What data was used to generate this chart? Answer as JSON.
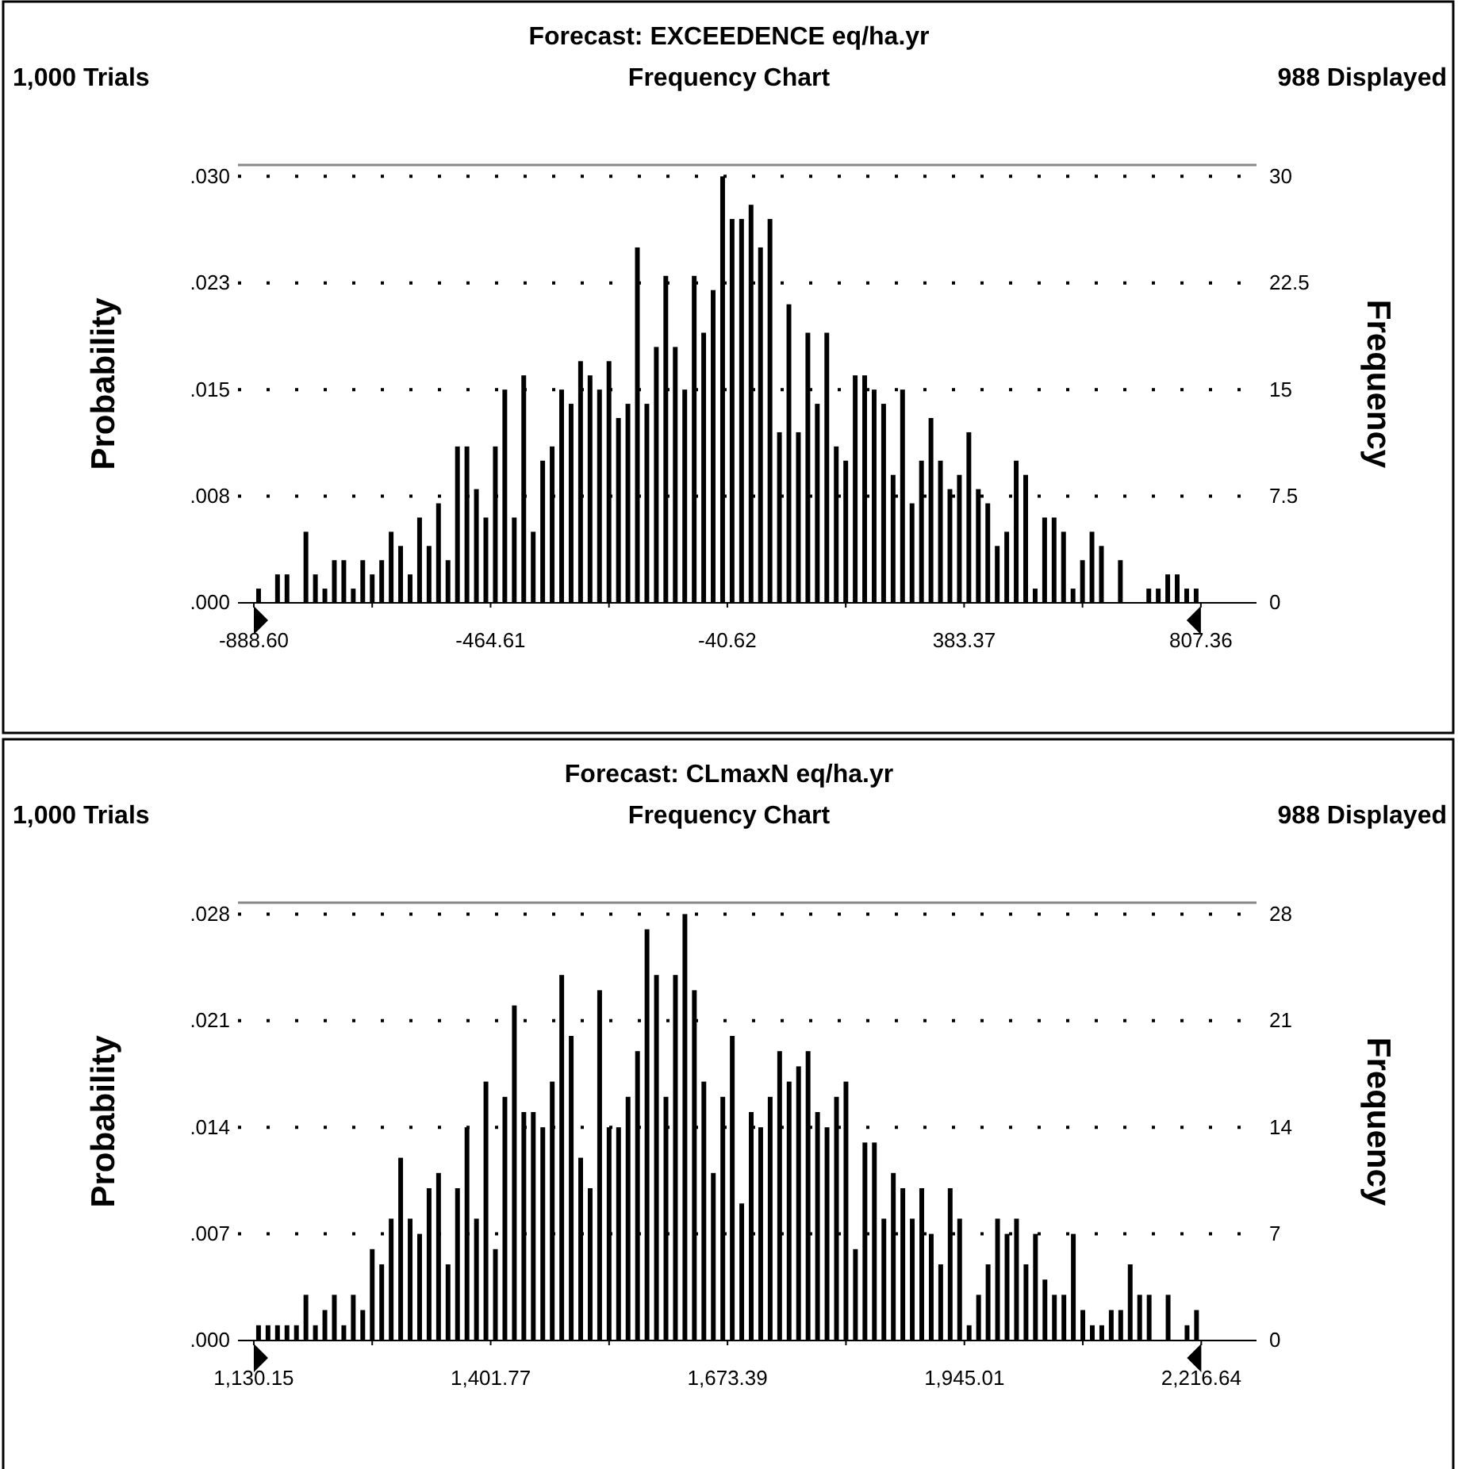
{
  "chart_data": [
    {
      "type": "histogram",
      "title": "Forecast: EXCEEDENCE eq/ha.yr",
      "subtitle": "Frequency Chart",
      "annotations": [
        "1,000 Trials",
        "988 Displayed"
      ],
      "ylabel": "Probability",
      "y2label": "Frequency",
      "bins": [
        -888.6,
        -871.64,
        -854.68,
        -837.72,
        -820.76,
        -803.8,
        -786.84,
        -769.88,
        -752.92,
        -735.96,
        -719,
        -702.04,
        -685.08,
        -668.12,
        -651.17,
        -634.21,
        -617.25,
        -600.29,
        -583.33,
        -566.37,
        -549.41,
        -532.45,
        -515.49,
        -498.53,
        -481.57,
        -464.61,
        -447.65,
        -430.69,
        -413.73,
        -396.77,
        -379.81,
        -362.85,
        -345.89,
        -328.93,
        -311.97,
        -295.01,
        -278.05,
        -261.09,
        -244.13,
        -227.18,
        -210.22,
        -193.26,
        -176.3,
        -159.34,
        -142.38,
        -125.42,
        -108.46,
        -91.5,
        -74.54,
        -57.58,
        -40.62,
        -23.66,
        -6.7,
        10.26,
        27.22,
        44.18,
        61.14,
        78.1,
        95.06,
        112.02,
        128.98,
        145.94,
        162.9,
        179.86,
        196.81,
        213.77,
        230.73,
        247.69,
        264.65,
        281.61,
        298.57,
        315.53,
        332.49,
        349.45,
        366.41,
        383.37,
        400.33,
        417.29,
        434.25,
        451.21,
        468.17,
        485.13,
        502.09,
        519.05,
        536.01,
        552.97,
        569.93,
        586.89,
        603.85,
        620.8,
        637.76,
        654.72,
        671.68,
        688.64,
        705.6,
        722.56,
        739.52,
        756.48,
        773.44,
        790.4,
        807.36
      ],
      "series": [
        {
          "color": "#000000",
          "axis": "y2",
          "values": [
            1,
            0,
            2,
            2,
            0,
            5,
            2,
            1,
            3,
            3,
            1,
            3,
            2,
            3,
            5,
            4,
            2,
            6,
            4,
            7,
            3,
            11,
            11,
            8,
            6,
            11,
            15,
            6,
            16,
            5,
            10,
            11,
            15,
            14,
            17,
            16,
            15,
            17,
            13,
            14,
            25,
            14,
            18,
            23,
            18,
            15,
            23,
            19,
            22,
            30,
            27,
            27,
            28,
            25,
            27,
            12,
            21,
            12,
            19,
            14,
            19,
            11,
            10,
            16,
            16,
            15,
            14,
            9,
            15,
            7,
            10,
            13,
            10,
            8,
            9,
            12,
            8,
            7,
            4,
            5,
            10,
            9,
            1,
            6,
            6,
            5,
            1,
            3,
            5,
            4,
            0,
            3,
            0,
            0,
            1,
            1,
            2,
            2,
            1,
            1
          ]
        }
      ],
      "xlim": [
        -917,
        907
      ],
      "xticks": [
        {
          "value": -888.6,
          "label": "-888.60"
        },
        {
          "value": -676.605,
          "label": null
        },
        {
          "value": -464.61,
          "label": "-464.61"
        },
        {
          "value": -252.615,
          "label": null
        },
        {
          "value": -40.62,
          "label": "-40.62"
        },
        {
          "value": 171.375,
          "label": null
        },
        {
          "value": 383.37,
          "label": "383.37"
        },
        {
          "value": 595.365,
          "label": null
        },
        {
          "value": 807.36,
          "label": "807.36"
        }
      ],
      "ylim": [
        0,
        0.0308
      ],
      "yticks": [
        {
          "value": 0,
          "label": ".000"
        },
        {
          "value": 0.0075,
          "label": ".008"
        },
        {
          "value": 0.015,
          "label": ".015"
        },
        {
          "value": 0.0225,
          "label": ".023"
        },
        {
          "value": 0.03,
          "label": ".030"
        }
      ],
      "y2lim": [
        0,
        30.8
      ],
      "y2ticks": [
        0,
        7.5,
        15,
        22.5,
        30
      ],
      "grid": "y"
    },
    {
      "type": "histogram",
      "title": "Forecast: CLmaxN eq/ha.yr",
      "subtitle": "Frequency Chart",
      "annotations": [
        "1,000 Trials",
        "988 Displayed"
      ],
      "ylabel": "Probability",
      "y2label": "Frequency",
      "bins": [
        1130.15,
        1141.01,
        1151.88,
        1162.74,
        1173.61,
        1184.47,
        1195.34,
        1206.2,
        1217.07,
        1227.93,
        1238.8,
        1249.66,
        1260.53,
        1271.39,
        1282.26,
        1293.12,
        1303.99,
        1314.85,
        1325.72,
        1336.58,
        1347.45,
        1358.31,
        1369.18,
        1380.04,
        1390.91,
        1401.77,
        1412.64,
        1423.5,
        1434.37,
        1445.23,
        1456.1,
        1466.96,
        1477.83,
        1488.69,
        1499.56,
        1510.42,
        1521.29,
        1532.15,
        1543.02,
        1553.88,
        1564.75,
        1575.61,
        1586.48,
        1597.34,
        1608.21,
        1619.07,
        1629.94,
        1640.8,
        1651.67,
        1662.53,
        1673.39,
        1684.26,
        1695.12,
        1705.99,
        1716.85,
        1727.72,
        1738.58,
        1749.45,
        1760.31,
        1771.18,
        1782.04,
        1792.91,
        1803.77,
        1814.64,
        1825.5,
        1836.37,
        1847.23,
        1858.1,
        1868.96,
        1879.83,
        1890.69,
        1901.56,
        1912.42,
        1923.29,
        1934.15,
        1945.01,
        1955.88,
        1966.75,
        1977.61,
        1988.48,
        1999.34,
        2010.21,
        2021.07,
        2031.94,
        2042.8,
        2053.67,
        2064.53,
        2075.4,
        2086.26,
        2097.13,
        2107.99,
        2118.86,
        2129.72,
        2140.59,
        2151.45,
        2162.32,
        2173.18,
        2184.05,
        2194.91,
        2205.78,
        2216.64
      ],
      "series": [
        {
          "color": "#000000",
          "axis": "y2",
          "values": [
            1,
            1,
            1,
            1,
            1,
            3,
            1,
            2,
            3,
            1,
            3,
            2,
            6,
            5,
            8,
            12,
            8,
            7,
            10,
            11,
            5,
            10,
            14,
            8,
            17,
            6,
            16,
            22,
            15,
            15,
            14,
            17,
            24,
            20,
            12,
            10,
            23,
            14,
            14,
            16,
            19,
            27,
            24,
            16,
            24,
            28,
            23,
            17,
            11,
            16,
            20,
            9,
            15,
            14,
            16,
            19,
            17,
            18,
            19,
            15,
            14,
            16,
            17,
            6,
            13,
            13,
            8,
            11,
            10,
            8,
            10,
            7,
            5,
            10,
            8,
            1,
            3,
            5,
            8,
            7,
            8,
            5,
            7,
            4,
            3,
            3,
            7,
            2,
            1,
            1,
            2,
            2,
            5,
            3,
            3,
            0,
            3,
            0,
            1,
            2
          ]
        }
      ],
      "xlim": [
        1112,
        2280
      ],
      "xticks": [
        {
          "value": 1130.15,
          "label": "1,130.15"
        },
        {
          "value": 1265.96,
          "label": null
        },
        {
          "value": 1401.77,
          "label": "1,401.77"
        },
        {
          "value": 1537.58,
          "label": null
        },
        {
          "value": 1673.39,
          "label": "1,673.39"
        },
        {
          "value": 1809.2,
          "label": null
        },
        {
          "value": 1945.01,
          "label": "1,945.01"
        },
        {
          "value": 2080.82,
          "label": null
        },
        {
          "value": 2216.64,
          "label": "2,216.64"
        }
      ],
      "ylim": [
        0,
        0.02875
      ],
      "yticks": [
        {
          "value": 0,
          "label": ".000"
        },
        {
          "value": 0.007,
          "label": ".007"
        },
        {
          "value": 0.014,
          "label": ".014"
        },
        {
          "value": 0.021,
          "label": ".021"
        },
        {
          "value": 0.028,
          "label": ".028"
        }
      ],
      "y2lim": [
        0,
        28.75
      ],
      "y2ticks": [
        0,
        7,
        14,
        21,
        28
      ],
      "grid": "y"
    }
  ]
}
